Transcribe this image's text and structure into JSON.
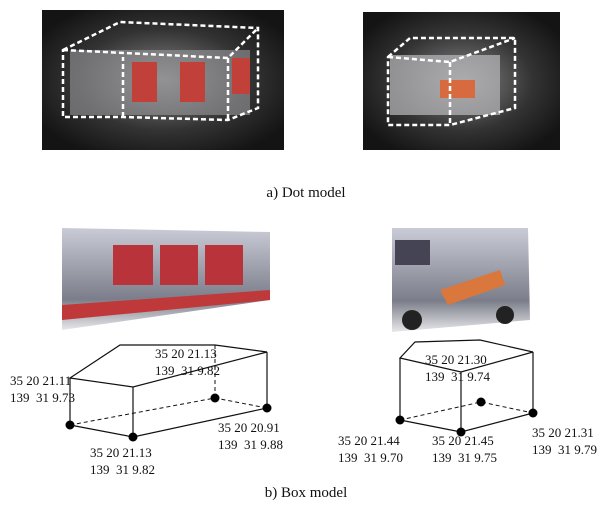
{
  "figure": {
    "captions": [
      "a) Dot model",
      "b) Box model"
    ],
    "box_model": {
      "truck": {
        "labels": [
          [
            "35 20 21.13",
            "139  31 9.82"
          ],
          [
            "35 20 21.11",
            "139  31 9.73"
          ],
          [
            "35 20 21.13",
            "139  31 9.82"
          ],
          [
            "35 20 20.91",
            "139  31 9.88"
          ]
        ]
      },
      "van": {
        "labels": [
          [
            "35 20 21.30",
            "139  31 9.74"
          ],
          [
            "35 20 21.44",
            "139  31 9.70"
          ],
          [
            "35 20 21.45",
            "139  31 9.75"
          ],
          [
            "35 20 21.31",
            "139  31 9.79"
          ]
        ]
      }
    }
  }
}
